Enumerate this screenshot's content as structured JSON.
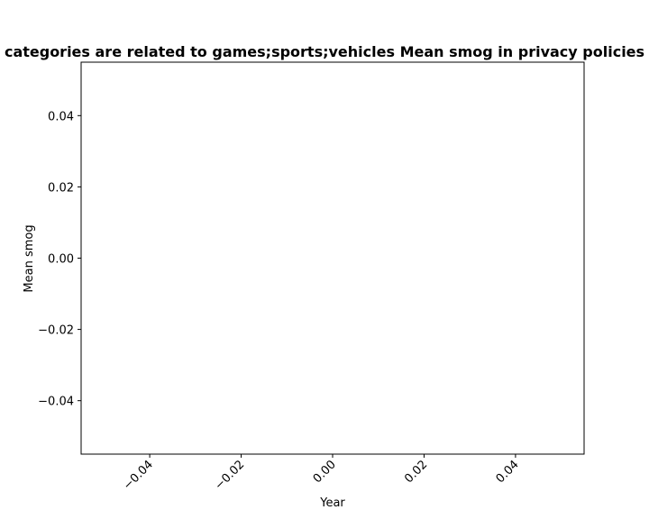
{
  "chart_data": {
    "type": "line",
    "title": "categories are related to games;sports;vehicles Mean smog in privacy policies",
    "xlabel": "Year",
    "ylabel": "Mean smog",
    "x": [],
    "series": [],
    "xlim": [
      -0.055,
      0.055
    ],
    "ylim": [
      -0.055,
      0.055
    ],
    "xticks": [
      -0.04,
      -0.02,
      0.0,
      0.02,
      0.04
    ],
    "xtick_labels": [
      "−0.04",
      "−0.02",
      "0.00",
      "0.02",
      "0.04"
    ],
    "yticks": [
      0.04,
      0.02,
      0.0,
      -0.02,
      -0.04
    ],
    "ytick_labels": [
      "0.04",
      "0.02",
      "0.00",
      "−0.02",
      "−0.04"
    ],
    "grid": false,
    "legend": "none"
  }
}
